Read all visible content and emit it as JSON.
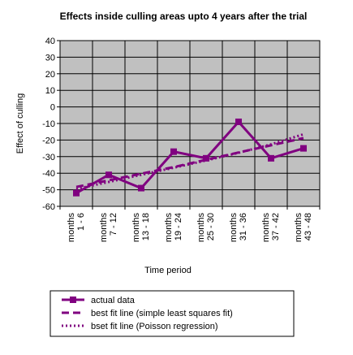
{
  "chart_data": {
    "type": "line",
    "title": "Effects inside culling areas upto 4 years after the trial",
    "xlabel": "Time period",
    "ylabel": "Effect of culling",
    "categories": [
      [
        "months",
        "1 - 6"
      ],
      [
        "months",
        "7 - 12"
      ],
      [
        "months",
        "13 - 18"
      ],
      [
        "months",
        "19 - 24"
      ],
      [
        "months",
        "25 - 30"
      ],
      [
        "months",
        "31 - 36"
      ],
      [
        "months",
        "37 - 42"
      ],
      [
        "months",
        "43 - 48"
      ]
    ],
    "ylim": [
      -60,
      40
    ],
    "yticks": [
      40,
      30,
      20,
      10,
      0,
      -10,
      -20,
      -30,
      -40,
      -50,
      -60
    ],
    "grid": true,
    "plot_background": "#c0c0c0",
    "series": [
      {
        "name": "actual data",
        "style": "solid-square-markers",
        "color": "#800080",
        "values": [
          -52,
          -41,
          -49,
          -27,
          -31,
          -9,
          -31,
          -25
        ]
      },
      {
        "name": "best fit line (simple least squares fit)",
        "style": "dashed",
        "color": "#800080",
        "values": [
          -48.3,
          -44.3,
          -40.3,
          -36.3,
          -31.9,
          -27.5,
          -23.2,
          -18.8
        ]
      },
      {
        "name": "bset fit line (Poisson regression)",
        "style": "dotted",
        "color": "#800080",
        "values": [
          -49.5,
          -45.3,
          -41.0,
          -36.7,
          -32.3,
          -27.7,
          -22.6,
          -16.5
        ]
      }
    ],
    "legend_position": "bottom"
  }
}
